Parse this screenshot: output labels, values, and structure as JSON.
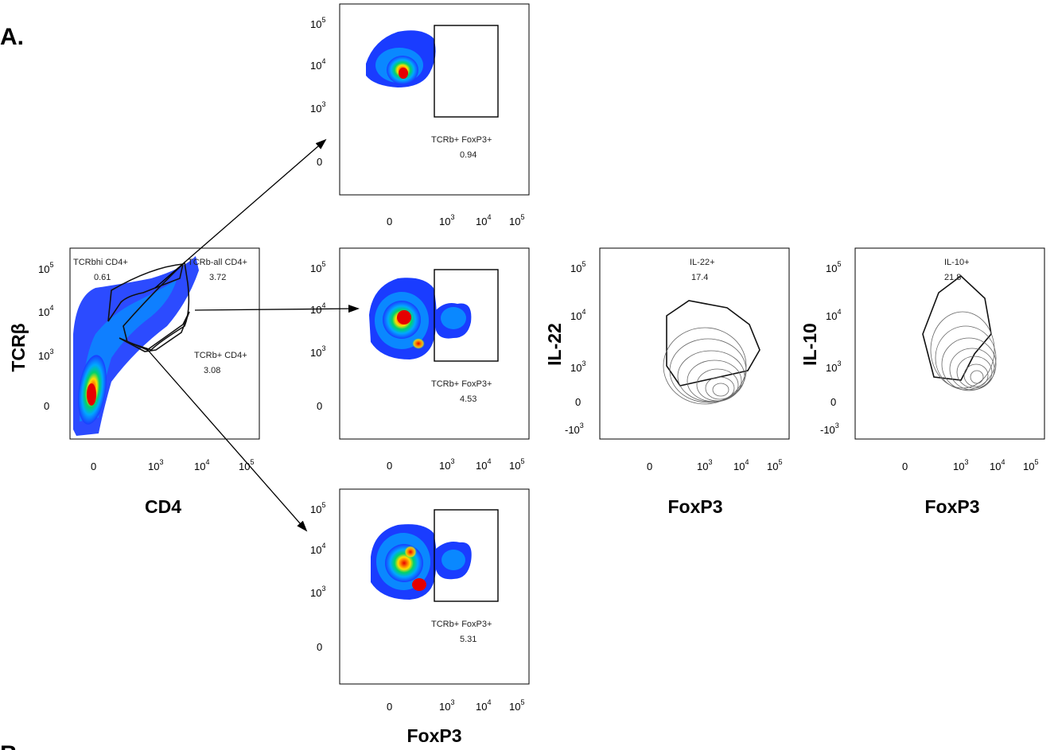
{
  "figure": {
    "panel_letters": [
      "A.",
      "B."
    ],
    "colors": {
      "density_low": "#1a3cff",
      "density_mid": "#00d26a",
      "density_high": "#ffe000",
      "density_peak": "#e60000",
      "contour": "#666666",
      "gate": "#111111"
    }
  },
  "chart_data": [
    {
      "id": "tcrb-vs-cd4",
      "type": "density-scatter",
      "xlabel": "CD4",
      "ylabel": "TCRβ",
      "x_ticks": [
        "0",
        "10^3",
        "10^4",
        "10^5"
      ],
      "y_ticks": [
        "0",
        "10^3",
        "10^4",
        "10^5"
      ],
      "gates": [
        {
          "name": "TCRbhi CD4+",
          "percent": "0.61"
        },
        {
          "name": "TCRb-all CD4+",
          "percent": "3.72"
        },
        {
          "name": "TCRb+ CD4+",
          "percent": "3.08"
        }
      ]
    },
    {
      "id": "foxp3-tcrbhi",
      "type": "density-scatter",
      "xlabel": "",
      "ylabel": "",
      "x_ticks": [
        "0",
        "10^3",
        "10^4",
        "10^5"
      ],
      "y_ticks": [
        "0",
        "10^3",
        "10^4",
        "10^5"
      ],
      "gates": [
        {
          "name": "TCRb+ FoxP3+",
          "percent": "0.94"
        }
      ]
    },
    {
      "id": "foxp3-tcrb-all",
      "type": "density-scatter",
      "xlabel": "",
      "ylabel": "",
      "x_ticks": [
        "0",
        "10^3",
        "10^4",
        "10^5"
      ],
      "y_ticks": [
        "0",
        "10^3",
        "10^4",
        "10^5"
      ],
      "gates": [
        {
          "name": "TCRb+ FoxP3+",
          "percent": "4.53"
        }
      ]
    },
    {
      "id": "foxp3-tcrb-pos",
      "type": "density-scatter",
      "xlabel": "FoxP3",
      "ylabel": "",
      "x_ticks": [
        "0",
        "10^3",
        "10^4",
        "10^5"
      ],
      "y_ticks": [
        "0",
        "10^3",
        "10^4",
        "10^5"
      ],
      "gates": [
        {
          "name": "TCRb+ FoxP3+",
          "percent": "5.31"
        }
      ]
    },
    {
      "id": "il22-vs-foxp3",
      "type": "contour",
      "xlabel": "FoxP3",
      "ylabel": "IL-22",
      "x_ticks": [
        "0",
        "10^3",
        "10^4",
        "10^5"
      ],
      "y_ticks": [
        "-10^3",
        "0",
        "10^3",
        "10^4",
        "10^5"
      ],
      "gates": [
        {
          "name": "IL-22+",
          "percent": "17.4"
        }
      ]
    },
    {
      "id": "il10-vs-foxp3",
      "type": "contour",
      "xlabel": "FoxP3",
      "ylabel": "IL-10",
      "x_ticks": [
        "0",
        "10^3",
        "10^4",
        "10^5"
      ],
      "y_ticks": [
        "-10^3",
        "0",
        "10^3",
        "10^4",
        "10^5"
      ],
      "gates": [
        {
          "name": "IL-10+",
          "percent": "21.8"
        }
      ]
    }
  ]
}
